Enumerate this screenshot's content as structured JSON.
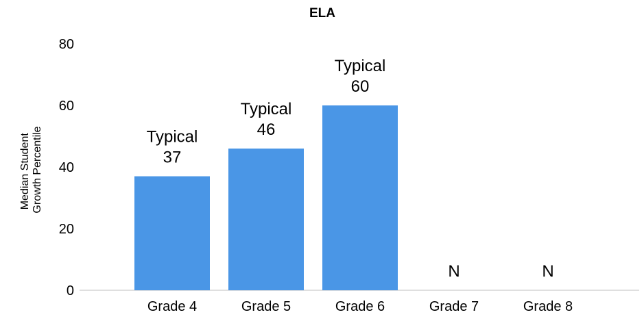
{
  "chart_data": {
    "type": "bar",
    "title": "ELA",
    "ylabel_lines": [
      "Median Student",
      "Growth Percentile"
    ],
    "xlabel": "",
    "categories": [
      "Grade 4",
      "Grade 5",
      "Grade 6",
      "Grade 7",
      "Grade 8"
    ],
    "values": [
      37,
      46,
      60,
      null,
      null
    ],
    "bar_labels": [
      [
        "Typical",
        "37"
      ],
      [
        "Typical",
        "46"
      ],
      [
        "Typical",
        "60"
      ],
      [
        "N"
      ],
      [
        "N"
      ]
    ],
    "ylim": [
      0,
      80
    ],
    "yticks": [
      "0",
      "20",
      "40",
      "60",
      "80"
    ],
    "grid": false,
    "legend": "none",
    "colors": {
      "bar": "#4A96E6",
      "axis": "#bfbfbf",
      "text": "#000000"
    }
  }
}
